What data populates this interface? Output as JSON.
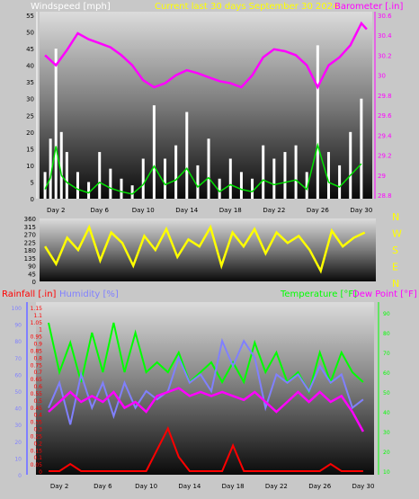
{
  "header": {
    "wind_label": "Windspeed [mph]",
    "title": "Current last 30 days September 30 2024",
    "baro_label": "Barometer [.in]"
  },
  "colors": {
    "bg": "#c8c8c8",
    "wind": "#ffffff",
    "gust": "#00e000",
    "baro": "#ff00ff",
    "title": "#ffff00",
    "dir": "#ffff00",
    "rain": "#ff0000",
    "humidity": "#8080ff",
    "temp": "#00ff00",
    "dew": "#ff00ff"
  },
  "chart_data": [
    {
      "type": "line",
      "name": "wind-baro",
      "x_ticks": [
        "Day 2",
        "Day 6",
        "Day 10",
        "Day 14",
        "Day 18",
        "Day 22",
        "Day 26",
        "Day 30"
      ],
      "x_tick_days": [
        2,
        6,
        10,
        14,
        18,
        22,
        26,
        30
      ],
      "y_left": {
        "label": "Windspeed [mph]",
        "ticks": [
          0,
          5,
          10,
          15,
          20,
          25,
          30,
          35,
          40,
          45,
          50,
          55
        ],
        "range": [
          0,
          55
        ]
      },
      "y_right": {
        "label": "Barometer [.in]",
        "ticks": [
          "28.8",
          "29",
          "29.2",
          "29.4",
          "29.6",
          "29.8",
          "30",
          "30.2",
          "30.4",
          "30.6"
        ],
        "range": [
          28.8,
          30.6
        ]
      },
      "series": [
        {
          "name": "Windspeed [mph]",
          "axis": "left",
          "values": [
            [
              1,
              8
            ],
            [
              1.5,
              18
            ],
            [
              2,
              45
            ],
            [
              2.5,
              20
            ],
            [
              3,
              14
            ],
            [
              4,
              8
            ],
            [
              5,
              5
            ],
            [
              6,
              14
            ],
            [
              7,
              9
            ],
            [
              8,
              6
            ],
            [
              9,
              4
            ],
            [
              10,
              12
            ],
            [
              11,
              28
            ],
            [
              12,
              12
            ],
            [
              13,
              16
            ],
            [
              14,
              26
            ],
            [
              15,
              10
            ],
            [
              16,
              18
            ],
            [
              17,
              6
            ],
            [
              18,
              12
            ],
            [
              19,
              8
            ],
            [
              20,
              6
            ],
            [
              21,
              16
            ],
            [
              22,
              12
            ],
            [
              23,
              14
            ],
            [
              24,
              16
            ],
            [
              25,
              8
            ],
            [
              26,
              46
            ],
            [
              27,
              14
            ],
            [
              28,
              10
            ],
            [
              29,
              20
            ],
            [
              30,
              30
            ]
          ]
        },
        {
          "name": "Barometer [.in]",
          "axis": "right",
          "values": [
            [
              1,
              30.2
            ],
            [
              2,
              30.1
            ],
            [
              3,
              30.25
            ],
            [
              4,
              30.42
            ],
            [
              5,
              30.36
            ],
            [
              6,
              30.32
            ],
            [
              7,
              30.28
            ],
            [
              8,
              30.2
            ],
            [
              9,
              30.1
            ],
            [
              10,
              29.95
            ],
            [
              11,
              29.88
            ],
            [
              12,
              29.92
            ],
            [
              13,
              30.0
            ],
            [
              14,
              30.05
            ],
            [
              15,
              30.02
            ],
            [
              16,
              29.98
            ],
            [
              17,
              29.94
            ],
            [
              18,
              29.92
            ],
            [
              19,
              29.88
            ],
            [
              20,
              30.0
            ],
            [
              21,
              30.18
            ],
            [
              22,
              30.26
            ],
            [
              23,
              30.24
            ],
            [
              24,
              30.2
            ],
            [
              25,
              30.1
            ],
            [
              26,
              29.88
            ],
            [
              27,
              30.1
            ],
            [
              28,
              30.18
            ],
            [
              29,
              30.3
            ],
            [
              30,
              30.52
            ],
            [
              30.5,
              30.46
            ]
          ]
        }
      ]
    },
    {
      "type": "line",
      "name": "wind-direction",
      "y_left": {
        "ticks": [
          0,
          45,
          90,
          135,
          180,
          225,
          270,
          315,
          360
        ],
        "range": [
          0,
          360
        ]
      },
      "y_right": {
        "ticks": [
          "N",
          "W",
          "S",
          "E",
          "N"
        ]
      },
      "series": [
        {
          "name": "Wind direction",
          "values": [
            [
              1,
              200
            ],
            [
              2,
              100
            ],
            [
              3,
              250
            ],
            [
              4,
              180
            ],
            [
              5,
              310
            ],
            [
              6,
              120
            ],
            [
              7,
              280
            ],
            [
              8,
              220
            ],
            [
              9,
              90
            ],
            [
              10,
              260
            ],
            [
              11,
              180
            ],
            [
              12,
              300
            ],
            [
              13,
              140
            ],
            [
              14,
              240
            ],
            [
              15,
              200
            ],
            [
              16,
              310
            ],
            [
              17,
              90
            ],
            [
              18,
              280
            ],
            [
              19,
              200
            ],
            [
              20,
              300
            ],
            [
              21,
              160
            ],
            [
              22,
              280
            ],
            [
              23,
              220
            ],
            [
              24,
              260
            ],
            [
              25,
              180
            ],
            [
              26,
              60
            ],
            [
              27,
              290
            ],
            [
              28,
              200
            ],
            [
              29,
              250
            ],
            [
              30,
              280
            ]
          ]
        }
      ]
    },
    {
      "type": "line",
      "name": "rain-hum-temp-dew",
      "x_ticks": [
        "Day 2",
        "Day 6",
        "Day 10",
        "Day 14",
        "Day 18",
        "Day 22",
        "Day 26",
        "Day 30"
      ],
      "x_tick_days": [
        2,
        6,
        10,
        14,
        18,
        22,
        26,
        30
      ],
      "y_left": {
        "label": "Humidity [%]",
        "ticks": [
          0,
          10,
          20,
          30,
          40,
          50,
          60,
          70,
          80,
          90,
          100
        ],
        "range": [
          0,
          100
        ]
      },
      "y_rain": {
        "label": "Rainfall [.in]",
        "ticks": [
          "0",
          "0.05",
          "0.1",
          "0.15",
          "0.2",
          "0.25",
          "0.3",
          "0.35",
          "0.4",
          "0.45",
          "0.5",
          "0.55",
          "0.6",
          "0.65",
          "0.7",
          "0.75",
          "0.8",
          "0.85",
          "0.9",
          "0.95",
          "1",
          "1.05",
          "1.1",
          "1.15"
        ],
        "range": [
          0,
          1.15
        ]
      },
      "y_right": {
        "label": "Temperature [°F]",
        "label2": "Dew Point [°F]",
        "ticks": [
          10,
          20,
          30,
          40,
          50,
          60,
          70,
          80,
          90
        ],
        "range": [
          10,
          90
        ]
      },
      "series": [
        {
          "name": "Rainfall [.in]",
          "axis": "rain",
          "values": [
            [
              1,
              0
            ],
            [
              2,
              0
            ],
            [
              3,
              0.05
            ],
            [
              4,
              0
            ],
            [
              10,
              0
            ],
            [
              11,
              0.15
            ],
            [
              12,
              0.3
            ],
            [
              13,
              0.1
            ],
            [
              14,
              0
            ],
            [
              17,
              0
            ],
            [
              18,
              0.18
            ],
            [
              19,
              0
            ],
            [
              26,
              0
            ],
            [
              27,
              0.05
            ],
            [
              28,
              0
            ],
            [
              30,
              0
            ]
          ]
        },
        {
          "name": "Humidity [%]",
          "axis": "left",
          "values": [
            [
              1,
              40
            ],
            [
              2,
              55
            ],
            [
              3,
              30
            ],
            [
              4,
              60
            ],
            [
              5,
              40
            ],
            [
              6,
              55
            ],
            [
              7,
              35
            ],
            [
              8,
              55
            ],
            [
              9,
              40
            ],
            [
              10,
              50
            ],
            [
              11,
              45
            ],
            [
              12,
              50
            ],
            [
              13,
              70
            ],
            [
              14,
              55
            ],
            [
              15,
              60
            ],
            [
              16,
              50
            ],
            [
              17,
              80
            ],
            [
              18,
              65
            ],
            [
              19,
              80
            ],
            [
              20,
              70
            ],
            [
              21,
              40
            ],
            [
              22,
              60
            ],
            [
              23,
              55
            ],
            [
              24,
              60
            ],
            [
              25,
              50
            ],
            [
              26,
              65
            ],
            [
              27,
              55
            ],
            [
              28,
              60
            ],
            [
              29,
              40
            ],
            [
              30,
              45
            ]
          ]
        },
        {
          "name": "Temperature [°F]",
          "axis": "right",
          "values": [
            [
              1,
              85
            ],
            [
              2,
              60
            ],
            [
              3,
              75
            ],
            [
              4,
              55
            ],
            [
              5,
              80
            ],
            [
              6,
              60
            ],
            [
              7,
              85
            ],
            [
              8,
              60
            ],
            [
              9,
              80
            ],
            [
              10,
              60
            ],
            [
              11,
              65
            ],
            [
              12,
              60
            ],
            [
              13,
              70
            ],
            [
              14,
              55
            ],
            [
              15,
              60
            ],
            [
              16,
              65
            ],
            [
              17,
              55
            ],
            [
              18,
              65
            ],
            [
              19,
              55
            ],
            [
              20,
              75
            ],
            [
              21,
              60
            ],
            [
              22,
              70
            ],
            [
              23,
              55
            ],
            [
              24,
              60
            ],
            [
              25,
              50
            ],
            [
              26,
              70
            ],
            [
              27,
              55
            ],
            [
              28,
              70
            ],
            [
              29,
              60
            ],
            [
              30,
              55
            ]
          ]
        },
        {
          "name": "Dew Point [°F]",
          "axis": "right",
          "values": [
            [
              1,
              40
            ],
            [
              2,
              45
            ],
            [
              3,
              50
            ],
            [
              4,
              45
            ],
            [
              5,
              48
            ],
            [
              6,
              45
            ],
            [
              7,
              50
            ],
            [
              8,
              42
            ],
            [
              9,
              45
            ],
            [
              10,
              40
            ],
            [
              11,
              48
            ],
            [
              12,
              50
            ],
            [
              13,
              52
            ],
            [
              14,
              48
            ],
            [
              15,
              50
            ],
            [
              16,
              48
            ],
            [
              17,
              50
            ],
            [
              18,
              48
            ],
            [
              19,
              46
            ],
            [
              20,
              50
            ],
            [
              21,
              45
            ],
            [
              22,
              40
            ],
            [
              23,
              45
            ],
            [
              24,
              50
            ],
            [
              25,
              45
            ],
            [
              26,
              50
            ],
            [
              27,
              45
            ],
            [
              28,
              48
            ],
            [
              29,
              40
            ],
            [
              30,
              30
            ]
          ]
        }
      ]
    }
  ]
}
